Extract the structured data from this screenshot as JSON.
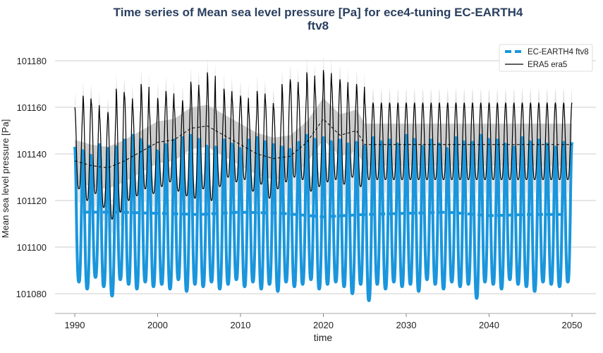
{
  "chart_data": {
    "type": "line",
    "title": "Time series of Mean sea level pressure [Pa] for ece4-tuning EC-EARTH4",
    "title_line2": "ftv8",
    "xlabel": "time",
    "ylabel": "Mean sea level pressure [Pa]",
    "xlim": [
      1987,
      2053
    ],
    "ylim": [
      101070,
      101188
    ],
    "x_ticks": [
      "1990",
      "2000",
      "2010",
      "2020",
      "2030",
      "2040",
      "2050"
    ],
    "y_ticks": [
      "101080",
      "101100",
      "101120",
      "101140",
      "101160",
      "101180"
    ],
    "grid": "horizontal",
    "legend_position": "top-right",
    "series": [
      {
        "name": "EC-EARTH4 ftv8",
        "color": "#1a96dc",
        "style": "thick line, dashed running mean",
        "start_year": 1990,
        "annual_peaks": [
          101143,
          101141,
          101137,
          101144,
          101142,
          101143,
          101146,
          101148,
          101145,
          101143,
          101141,
          101144,
          101146,
          101147,
          101148,
          101145,
          101142,
          101143,
          101146,
          101144,
          101140,
          101146,
          101147,
          101141,
          101144,
          101143,
          101142,
          101145,
          101148,
          101144,
          101147,
          101143,
          101146,
          101141,
          101145,
          101143,
          101147,
          101144,
          101146,
          101142,
          101148,
          101145,
          101143,
          101146,
          101144,
          101141,
          101147,
          101143,
          101145,
          101148,
          101142,
          101146,
          101144,
          101143,
          101147,
          101145,
          101146,
          101144,
          101143,
          101145
        ],
        "annual_troughs": [
          101085,
          101082,
          101087,
          101083,
          101079,
          101086,
          101084,
          101082,
          101085,
          101083,
          101084,
          101082,
          101086,
          101081,
          101084,
          101083,
          101085,
          101082,
          101084,
          101086,
          101083,
          101085,
          101082,
          101084,
          101081,
          101085,
          101083,
          101084,
          101086,
          101082,
          101084,
          101085,
          101083,
          101080,
          101084,
          101077,
          101084,
          101082,
          101085,
          101083,
          101084,
          101081,
          101086,
          101084,
          101082,
          101085,
          101083,
          101084,
          101078,
          101085,
          101084,
          101082,
          101086,
          101084,
          101083,
          101081,
          101085,
          101084,
          101083,
          101085
        ],
        "running_mean": {
          "years": [
            1991,
            1995,
            2000,
            2005,
            2010,
            2015,
            2020,
            2025,
            2030,
            2035,
            2040,
            2045,
            2049
          ],
          "values": [
            101115,
            101115,
            101114.5,
            101114,
            101115,
            101114.5,
            101113,
            101114,
            101114.5,
            101115,
            101113.5,
            101114,
            101114
          ]
        }
      },
      {
        "name": "ERA5 era5",
        "color": "#000000",
        "style": "thin line, dashed running mean, grey spread band",
        "start_year": 1990,
        "annual_peaks": [
          101160,
          101165,
          101162,
          101156,
          101158,
          101168,
          101165,
          101160,
          101170,
          101158,
          101164,
          101167,
          101160,
          101163,
          101171,
          101166,
          101175,
          101160,
          101168,
          101163,
          101165,
          101158,
          101167,
          101163,
          101160,
          101170,
          101172,
          101166,
          101175,
          101168,
          101176,
          101170,
          101172,
          101165,
          101170
        ],
        "annual_troughs": [
          101125,
          101120,
          101123,
          101117,
          101112,
          101115,
          101120,
          101122,
          101125,
          101123,
          101126,
          101128,
          101124,
          101122,
          101121,
          101125,
          101120,
          101126,
          101130,
          101128,
          101129,
          101124,
          101127,
          101121,
          101125,
          101128,
          101130,
          101129,
          101124,
          101126,
          101128,
          101129,
          101127,
          101130,
          101126
        ],
        "climatology_after_2025": {
          "peak": 101162,
          "trough": 101129
        },
        "running_mean": {
          "years": [
            1990,
            1992,
            1994,
            1996,
            1998,
            2000,
            2002,
            2004,
            2006,
            2008,
            2010,
            2012,
            2014,
            2016,
            2018,
            2020,
            2022,
            2024,
            2025,
            2050
          ],
          "values": [
            101137,
            101135,
            101134,
            101137,
            101141,
            101145,
            101146,
            101151,
            101152,
            101148,
            101144,
            101140,
            101138,
            101139,
            101145,
            101155,
            101148,
            101150,
            101144,
            101144
          ]
        }
      }
    ]
  }
}
